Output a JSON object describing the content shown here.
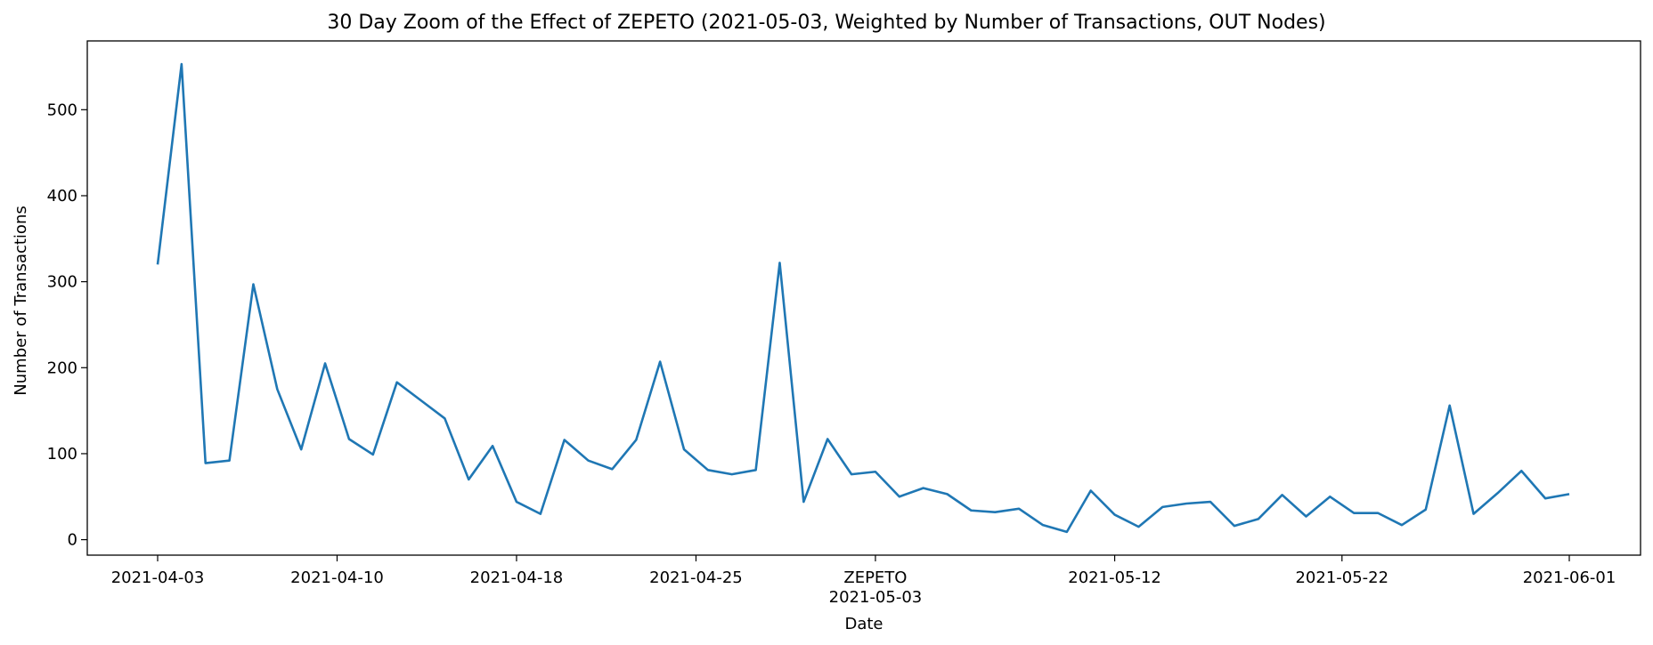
{
  "chart_data": {
    "type": "line",
    "title": "30 Day Zoom of the Effect of ZEPETO (2021-05-03, Weighted by Number of Transactions, OUT Nodes)",
    "xlabel": "Date",
    "ylabel": "Number of Transactions",
    "ylim": [
      -18,
      580
    ],
    "y_ticks": [
      0,
      100,
      200,
      300,
      400,
      500
    ],
    "x_ticks": [
      {
        "label": "2021-04-03",
        "index": 0
      },
      {
        "label": "2021-04-10",
        "index": 7.5
      },
      {
        "label": "2021-04-18",
        "index": 15
      },
      {
        "label": "2021-04-25",
        "index": 22.5
      },
      {
        "label": "ZEPETO",
        "sublabel": "2021-05-03",
        "index": 30
      },
      {
        "label": "2021-05-12",
        "index": 40
      },
      {
        "label": "2021-05-22",
        "index": 49.5
      },
      {
        "label": "2021-06-01",
        "index": 59
      }
    ],
    "grid": false,
    "line_color": "#1f77b4",
    "series": [
      {
        "values": [
          320,
          553,
          89,
          92,
          297,
          175,
          105,
          205,
          117,
          99,
          183,
          162,
          141,
          70,
          109,
          44,
          30,
          116,
          92,
          82,
          116,
          207,
          105,
          81,
          76,
          81,
          322,
          44,
          117,
          76,
          79,
          50,
          60,
          53,
          34,
          32,
          36,
          17,
          9,
          57,
          29,
          15,
          38,
          42,
          44,
          16,
          24,
          52,
          27,
          50,
          31,
          31,
          17,
          35,
          156,
          30,
          54,
          80,
          48,
          53
        ]
      }
    ]
  }
}
